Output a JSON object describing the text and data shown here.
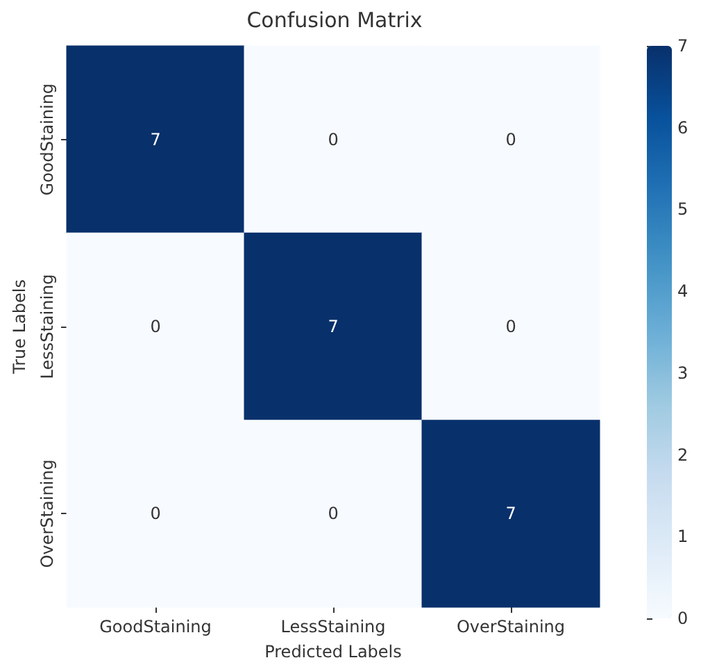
{
  "chart_data": {
    "type": "heatmap",
    "title": "Confusion Matrix",
    "xlabel": "Predicted Labels",
    "ylabel": "True Labels",
    "categories": [
      "GoodStaining",
      "LessStaining",
      "OverStaining"
    ],
    "y_categories": [
      "GoodStaining",
      "LessStaining",
      "OverStaining"
    ],
    "cells": [
      [
        7,
        0,
        0
      ],
      [
        0,
        7,
        0
      ],
      [
        0,
        0,
        7
      ]
    ],
    "data_labels": true,
    "clim": [
      0,
      7
    ],
    "cticks": [
      0,
      1,
      2,
      3,
      4,
      5,
      6,
      7
    ]
  }
}
